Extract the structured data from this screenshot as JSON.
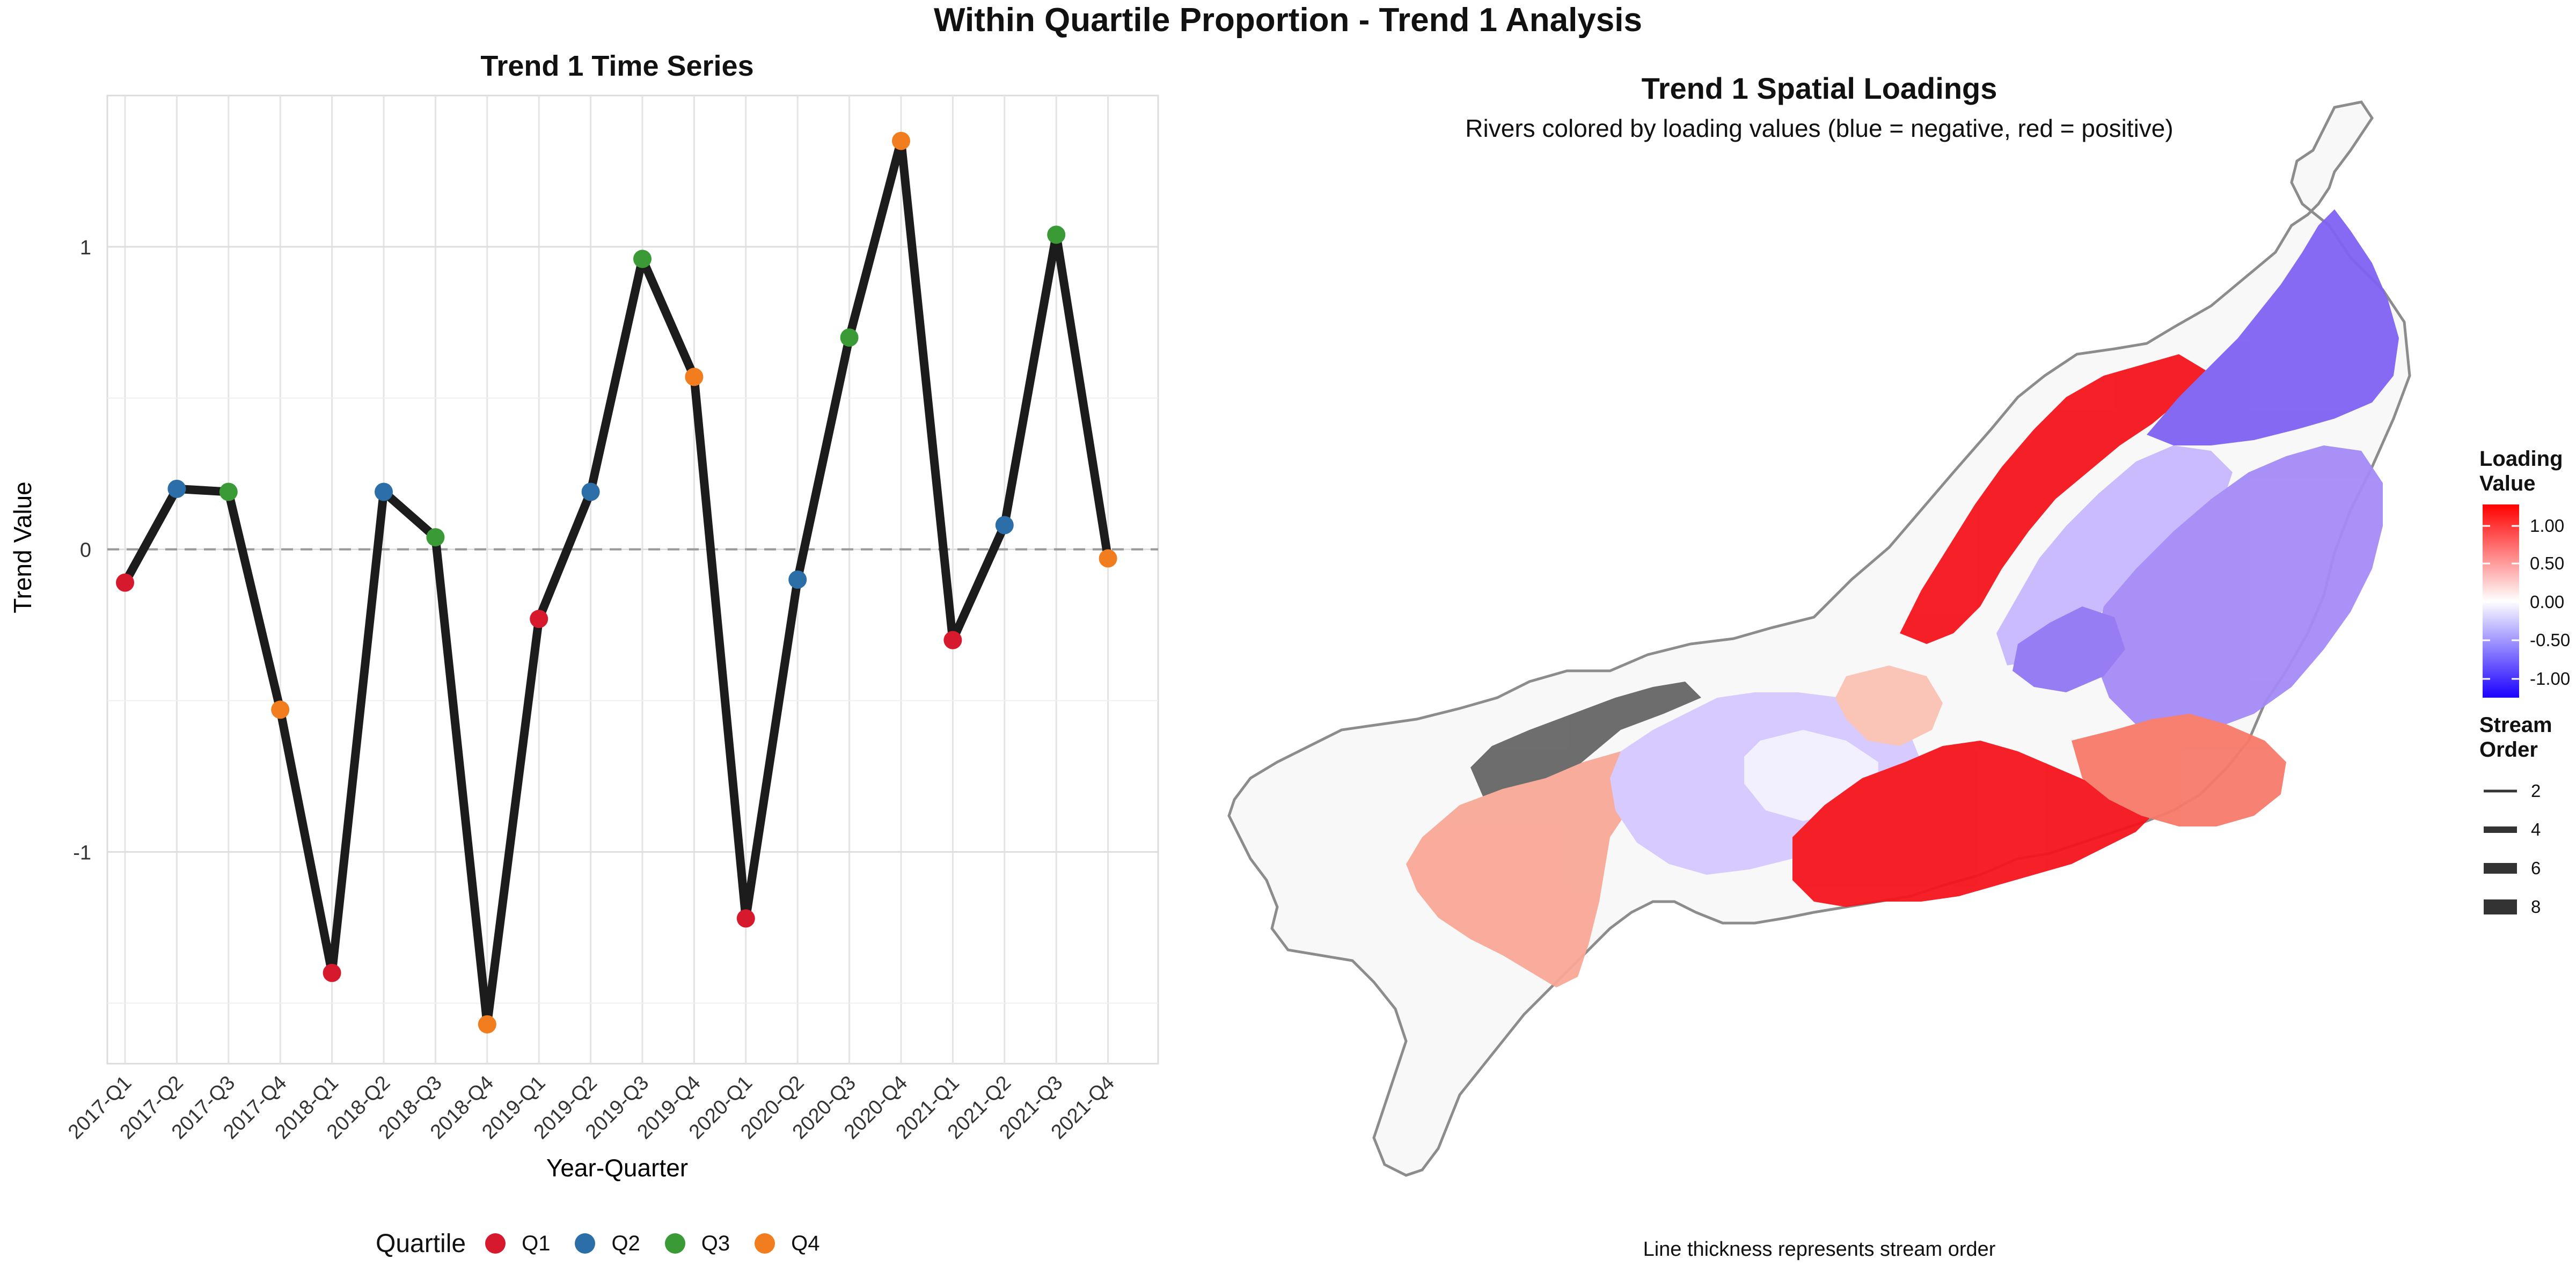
{
  "figure": {
    "title": "Within Quartile Proportion - Trend 1 Analysis"
  },
  "left_panel": {
    "title": "Trend 1 Time Series",
    "xlabel": "Year-Quarter",
    "ylabel": "Trend Value",
    "legend": {
      "title": "Quartile",
      "entries": [
        {
          "label": "Q1",
          "color": "#d7192e"
        },
        {
          "label": "Q2",
          "color": "#2b6ea8"
        },
        {
          "label": "Q3",
          "color": "#3a9a35"
        },
        {
          "label": "Q4",
          "color": "#f27d1e"
        }
      ]
    }
  },
  "right_panel": {
    "title": "Trend 1 Spatial Loadings",
    "subtitle": "Rivers colored by loading values (blue = negative, red = positive)",
    "caption": "Line thickness represents stream order",
    "colorbar": {
      "title_line1": "Loading",
      "title_line2": "Value",
      "ticks": [
        "1.00",
        "0.50",
        "0.00",
        "-0.50",
        "-1.00"
      ],
      "high_color": "#ff0000",
      "mid_color": "#ffffff",
      "low_color": "#1a00ff"
    },
    "stream_order_legend": {
      "title_line1": "Stream",
      "title_line2": "Order",
      "items": [
        "2",
        "4",
        "6",
        "8"
      ]
    },
    "region_colors": {
      "outline": "#8c8c8c",
      "background_fill": "#f8f8f8",
      "no_data": "#666666",
      "strong_positive": "#f5141c",
      "moderate_positive": "#f77a6a",
      "weak_positive": "#f9a897",
      "neutral": "#f2f0ff",
      "weak_negative": "#d6c8ff",
      "moderate_negative": "#a48bf7",
      "strong_negative": "#7f62f2"
    }
  },
  "chart_data": {
    "type": "line",
    "title": "Trend 1 Time Series",
    "xlabel": "Year-Quarter",
    "ylabel": "Trend Value",
    "categories": [
      "2017-Q1",
      "2017-Q2",
      "2017-Q3",
      "2017-Q4",
      "2018-Q1",
      "2018-Q2",
      "2018-Q3",
      "2018-Q4",
      "2019-Q1",
      "2019-Q2",
      "2019-Q3",
      "2019-Q4",
      "2020-Q1",
      "2020-Q2",
      "2020-Q3",
      "2020-Q4",
      "2021-Q1",
      "2021-Q2",
      "2021-Q3",
      "2021-Q4"
    ],
    "values": [
      -0.11,
      0.2,
      0.19,
      -0.53,
      -1.4,
      0.19,
      0.04,
      -1.57,
      -0.23,
      0.19,
      0.96,
      0.57,
      -1.22,
      -0.1,
      0.7,
      1.35,
      -0.3,
      0.08,
      1.04,
      -0.03
    ],
    "quartile": [
      "Q1",
      "Q2",
      "Q3",
      "Q4",
      "Q1",
      "Q2",
      "Q3",
      "Q4",
      "Q1",
      "Q2",
      "Q3",
      "Q4",
      "Q1",
      "Q2",
      "Q3",
      "Q4",
      "Q1",
      "Q2",
      "Q3",
      "Q4"
    ],
    "ylim": [
      -1.7,
      1.5
    ],
    "yticks": [
      1,
      0,
      -1
    ],
    "ytick_labels": [
      "1",
      "0",
      "-1"
    ],
    "reference_line": 0,
    "grid": true,
    "legend_placement": "bottom"
  }
}
